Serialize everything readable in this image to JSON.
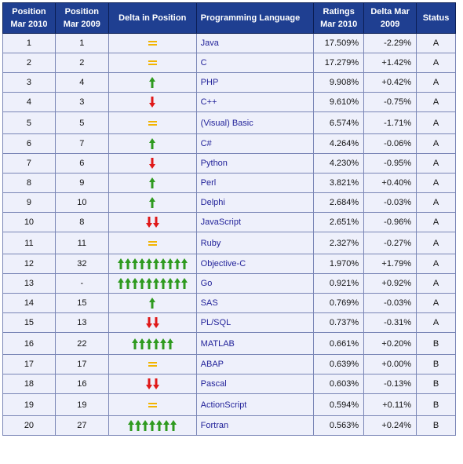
{
  "header": {
    "pos2010": "Position Mar 2010",
    "pos2009": "Position Mar 2009",
    "delta": "Delta in Position",
    "language": "Programming Language",
    "ratings": "Ratings Mar 2010",
    "delta2009": "Delta Mar 2009",
    "status": "Status"
  },
  "colors": {
    "up": "#2e9a1f",
    "down": "#e01818",
    "equal": "#f2b400",
    "header": "#1f3f91"
  },
  "rows": [
    {
      "pos2010": "1",
      "pos2009": "1",
      "dir": "equal",
      "count": 1,
      "lang": "Java",
      "rating": "17.509%",
      "delta": "-2.29%",
      "status": "A"
    },
    {
      "pos2010": "2",
      "pos2009": "2",
      "dir": "equal",
      "count": 1,
      "lang": "C",
      "rating": "17.279%",
      "delta": "+1.42%",
      "status": "A"
    },
    {
      "pos2010": "3",
      "pos2009": "4",
      "dir": "up",
      "count": 1,
      "lang": "PHP",
      "rating": "9.908%",
      "delta": "+0.42%",
      "status": "A"
    },
    {
      "pos2010": "4",
      "pos2009": "3",
      "dir": "down",
      "count": 1,
      "lang": "C++",
      "rating": "9.610%",
      "delta": "-0.75%",
      "status": "A"
    },
    {
      "pos2010": "5",
      "pos2009": "5",
      "dir": "equal",
      "count": 1,
      "lang": "(Visual) Basic",
      "rating": "6.574%",
      "delta": "-1.71%",
      "status": "A"
    },
    {
      "pos2010": "6",
      "pos2009": "7",
      "dir": "up",
      "count": 1,
      "lang": "C#",
      "rating": "4.264%",
      "delta": "-0.06%",
      "status": "A"
    },
    {
      "pos2010": "7",
      "pos2009": "6",
      "dir": "down",
      "count": 1,
      "lang": "Python",
      "rating": "4.230%",
      "delta": "-0.95%",
      "status": "A"
    },
    {
      "pos2010": "8",
      "pos2009": "9",
      "dir": "up",
      "count": 1,
      "lang": "Perl",
      "rating": "3.821%",
      "delta": "+0.40%",
      "status": "A"
    },
    {
      "pos2010": "9",
      "pos2009": "10",
      "dir": "up",
      "count": 1,
      "lang": "Delphi",
      "rating": "2.684%",
      "delta": "-0.03%",
      "status": "A"
    },
    {
      "pos2010": "10",
      "pos2009": "8",
      "dir": "down",
      "count": 2,
      "lang": "JavaScript",
      "rating": "2.651%",
      "delta": "-0.96%",
      "status": "A"
    },
    {
      "pos2010": "11",
      "pos2009": "11",
      "dir": "equal",
      "count": 1,
      "lang": "Ruby",
      "rating": "2.327%",
      "delta": "-0.27%",
      "status": "A"
    },
    {
      "pos2010": "12",
      "pos2009": "32",
      "dir": "up",
      "count": 10,
      "lang": "Objective-C",
      "rating": "1.970%",
      "delta": "+1.79%",
      "status": "A"
    },
    {
      "pos2010": "13",
      "pos2009": "-",
      "dir": "up",
      "count": 10,
      "lang": "Go",
      "rating": "0.921%",
      "delta": "+0.92%",
      "status": "A"
    },
    {
      "pos2010": "14",
      "pos2009": "15",
      "dir": "up",
      "count": 1,
      "lang": "SAS",
      "rating": "0.769%",
      "delta": "-0.03%",
      "status": "A"
    },
    {
      "pos2010": "15",
      "pos2009": "13",
      "dir": "down",
      "count": 2,
      "lang": "PL/SQL",
      "rating": "0.737%",
      "delta": "-0.31%",
      "status": "A"
    },
    {
      "pos2010": "16",
      "pos2009": "22",
      "dir": "up",
      "count": 6,
      "lang": "MATLAB",
      "rating": "0.661%",
      "delta": "+0.20%",
      "status": "B"
    },
    {
      "pos2010": "17",
      "pos2009": "17",
      "dir": "equal",
      "count": 1,
      "lang": "ABAP",
      "rating": "0.639%",
      "delta": "+0.00%",
      "status": "B"
    },
    {
      "pos2010": "18",
      "pos2009": "16",
      "dir": "down",
      "count": 2,
      "lang": "Pascal",
      "rating": "0.603%",
      "delta": "-0.13%",
      "status": "B"
    },
    {
      "pos2010": "19",
      "pos2009": "19",
      "dir": "equal",
      "count": 1,
      "lang": "ActionScript",
      "rating": "0.594%",
      "delta": "+0.11%",
      "status": "B"
    },
    {
      "pos2010": "20",
      "pos2009": "27",
      "dir": "up",
      "count": 7,
      "lang": "Fortran",
      "rating": "0.563%",
      "delta": "+0.24%",
      "status": "B"
    }
  ]
}
